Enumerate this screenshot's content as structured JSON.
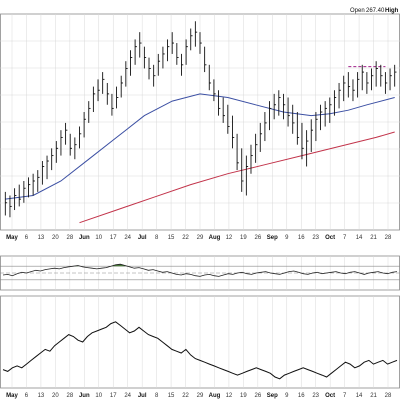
{
  "header": {
    "open_label": "Open",
    "open_value": "267.40",
    "high_label": "High"
  },
  "colors": {
    "background": "#ffffff",
    "grid": "#d9d9d9",
    "frame": "#8a8a8a",
    "bars": "#111111",
    "ma_short": "#3b4fa3",
    "ma_long": "#c2334a",
    "resistance": "#a0228a",
    "osc_line": "#222222",
    "osc_fill": "#4a7a3a",
    "osc_midline": "#888888",
    "lower_line": "#111111"
  },
  "chart_data": [
    {
      "type": "ohlc",
      "x_ticks": [
        {
          "label": "May",
          "bold": true
        },
        {
          "label": "6"
        },
        {
          "label": "13"
        },
        {
          "label": "20"
        },
        {
          "label": "28"
        },
        {
          "label": "Jun",
          "bold": true
        },
        {
          "label": "10"
        },
        {
          "label": "17"
        },
        {
          "label": "24"
        },
        {
          "label": "Jul",
          "bold": true
        },
        {
          "label": "8"
        },
        {
          "label": "15"
        },
        {
          "label": "22"
        },
        {
          "label": "29"
        },
        {
          "label": "Aug",
          "bold": true
        },
        {
          "label": "12"
        },
        {
          "label": "19"
        },
        {
          "label": "26"
        },
        {
          "label": "Sep",
          "bold": true
        },
        {
          "label": "9"
        },
        {
          "label": "16"
        },
        {
          "label": "23"
        },
        {
          "label": "Oct",
          "bold": true
        },
        {
          "label": "7"
        },
        {
          "label": "14"
        },
        {
          "label": "21"
        },
        {
          "label": "28"
        }
      ],
      "grid": true,
      "price_bars": [
        [
          0,
          238,
          225,
          232
        ],
        [
          1,
          236,
          224,
          230
        ],
        [
          2,
          240,
          228,
          236
        ],
        [
          3,
          242,
          230,
          234
        ],
        [
          4,
          244,
          232,
          240
        ],
        [
          5,
          246,
          235,
          242
        ],
        [
          6,
          248,
          236,
          244
        ],
        [
          7,
          250,
          238,
          246
        ],
        [
          8,
          255,
          242,
          252
        ],
        [
          9,
          258,
          245,
          255
        ],
        [
          10,
          262,
          250,
          258
        ],
        [
          11,
          266,
          254,
          262
        ],
        [
          12,
          272,
          258,
          268
        ],
        [
          13,
          276,
          264,
          272
        ],
        [
          14,
          270,
          258,
          262
        ],
        [
          15,
          268,
          256,
          264
        ],
        [
          16,
          274,
          262,
          270
        ],
        [
          17,
          282,
          268,
          278
        ],
        [
          18,
          288,
          276,
          284
        ],
        [
          19,
          296,
          282,
          292
        ],
        [
          20,
          300,
          288,
          294
        ],
        [
          21,
          304,
          292,
          300
        ],
        [
          22,
          298,
          286,
          292
        ],
        [
          23,
          292,
          280,
          284
        ],
        [
          24,
          296,
          284,
          290
        ],
        [
          25,
          302,
          290,
          298
        ],
        [
          26,
          310,
          296,
          306
        ],
        [
          27,
          316,
          302,
          312
        ],
        [
          28,
          322,
          308,
          318
        ],
        [
          29,
          326,
          312,
          320
        ],
        [
          30,
          318,
          306,
          312
        ],
        [
          31,
          312,
          300,
          306
        ],
        [
          32,
          308,
          296,
          302
        ],
        [
          33,
          314,
          302,
          310
        ],
        [
          34,
          318,
          306,
          314
        ],
        [
          35,
          322,
          310,
          318
        ],
        [
          36,
          326,
          314,
          320
        ],
        [
          37,
          320,
          308,
          312
        ],
        [
          38,
          314,
          302,
          308
        ],
        [
          39,
          322,
          308,
          318
        ],
        [
          40,
          328,
          316,
          324
        ],
        [
          41,
          332,
          318,
          326
        ],
        [
          42,
          326,
          314,
          320
        ],
        [
          43,
          318,
          304,
          308
        ],
        [
          44,
          308,
          294,
          298
        ],
        [
          45,
          300,
          288,
          292
        ],
        [
          46,
          294,
          280,
          284
        ],
        [
          47,
          290,
          276,
          280
        ],
        [
          48,
          286,
          270,
          274
        ],
        [
          49,
          280,
          262,
          268
        ],
        [
          50,
          270,
          250,
          254
        ],
        [
          51,
          262,
          238,
          244
        ],
        [
          52,
          258,
          236,
          252
        ],
        [
          53,
          264,
          248,
          258
        ],
        [
          54,
          270,
          254,
          264
        ],
        [
          55,
          276,
          260,
          270
        ],
        [
          56,
          282,
          266,
          276
        ],
        [
          57,
          288,
          272,
          284
        ],
        [
          58,
          292,
          278,
          286
        ],
        [
          59,
          294,
          280,
          290
        ],
        [
          60,
          292,
          278,
          286
        ],
        [
          61,
          290,
          274,
          280
        ],
        [
          62,
          286,
          270,
          276
        ],
        [
          63,
          282,
          264,
          268
        ],
        [
          64,
          276,
          256,
          262
        ],
        [
          65,
          272,
          252,
          266
        ],
        [
          66,
          278,
          260,
          272
        ],
        [
          67,
          282,
          266,
          278
        ],
        [
          68,
          286,
          272,
          282
        ],
        [
          69,
          288,
          274,
          284
        ],
        [
          70,
          290,
          276,
          286
        ],
        [
          71,
          294,
          280,
          290
        ],
        [
          72,
          298,
          284,
          294
        ],
        [
          73,
          302,
          288,
          298
        ],
        [
          74,
          304,
          290,
          296
        ],
        [
          75,
          300,
          288,
          294
        ],
        [
          76,
          304,
          290,
          300
        ],
        [
          77,
          308,
          294,
          304
        ],
        [
          78,
          304,
          292,
          298
        ],
        [
          79,
          306,
          294,
          302
        ],
        [
          80,
          310,
          296,
          306
        ],
        [
          81,
          308,
          296,
          302
        ],
        [
          82,
          304,
          292,
          298
        ],
        [
          83,
          306,
          294,
          302
        ],
        [
          84,
          308,
          296,
          304
        ]
      ],
      "moving_average_50": [
        [
          0,
          234
        ],
        [
          6,
          236
        ],
        [
          12,
          244
        ],
        [
          18,
          256
        ],
        [
          24,
          268
        ],
        [
          30,
          280
        ],
        [
          36,
          288
        ],
        [
          42,
          292
        ],
        [
          48,
          290
        ],
        [
          54,
          286
        ],
        [
          60,
          282
        ],
        [
          66,
          280
        ],
        [
          70,
          281
        ],
        [
          74,
          283
        ],
        [
          78,
          286
        ],
        [
          84,
          290
        ]
      ],
      "moving_average_200": [
        [
          16,
          221
        ],
        [
          24,
          228
        ],
        [
          32,
          235
        ],
        [
          40,
          242
        ],
        [
          48,
          248
        ],
        [
          56,
          253
        ],
        [
          64,
          258
        ],
        [
          72,
          263
        ],
        [
          80,
          268
        ],
        [
          84,
          271
        ]
      ],
      "resistance_level": {
        "value": 307,
        "from_bar": 74,
        "to_bar": 82
      }
    },
    {
      "type": "line",
      "fill_above_upper": true,
      "upper_level": 70,
      "lower_level": 30,
      "mid_level": 50,
      "ylim": [
        0,
        100
      ],
      "values": [
        44,
        46,
        42,
        48,
        52,
        50,
        54,
        58,
        56,
        60,
        62,
        64,
        62,
        66,
        68,
        70,
        72,
        68,
        66,
        64,
        62,
        64,
        66,
        70,
        74,
        76,
        72,
        68,
        64,
        66,
        62,
        58,
        60,
        56,
        52,
        54,
        50,
        46,
        44,
        48,
        46,
        42,
        40,
        44,
        46,
        42,
        40,
        44,
        48,
        46,
        50,
        52,
        48,
        46,
        50,
        52,
        54,
        50,
        48,
        46,
        50,
        54,
        56,
        52,
        48,
        46,
        50,
        52,
        48,
        50,
        52,
        54,
        50,
        48,
        52,
        54,
        50,
        46,
        50,
        52,
        54,
        50,
        48,
        52,
        54
      ]
    },
    {
      "type": "line",
      "ylim": [
        0,
        100
      ],
      "values": [
        20,
        18,
        22,
        24,
        22,
        26,
        30,
        34,
        38,
        42,
        40,
        46,
        50,
        54,
        58,
        56,
        52,
        50,
        56,
        60,
        62,
        64,
        66,
        70,
        72,
        68,
        64,
        60,
        62,
        66,
        62,
        58,
        56,
        54,
        50,
        46,
        42,
        40,
        38,
        42,
        36,
        32,
        30,
        28,
        26,
        24,
        22,
        20,
        18,
        16,
        14,
        16,
        18,
        20,
        22,
        20,
        18,
        16,
        12,
        10,
        14,
        16,
        18,
        20,
        22,
        20,
        18,
        16,
        14,
        12,
        16,
        20,
        24,
        28,
        26,
        22,
        24,
        28,
        30,
        26,
        28,
        30,
        26,
        28,
        30
      ]
    }
  ]
}
